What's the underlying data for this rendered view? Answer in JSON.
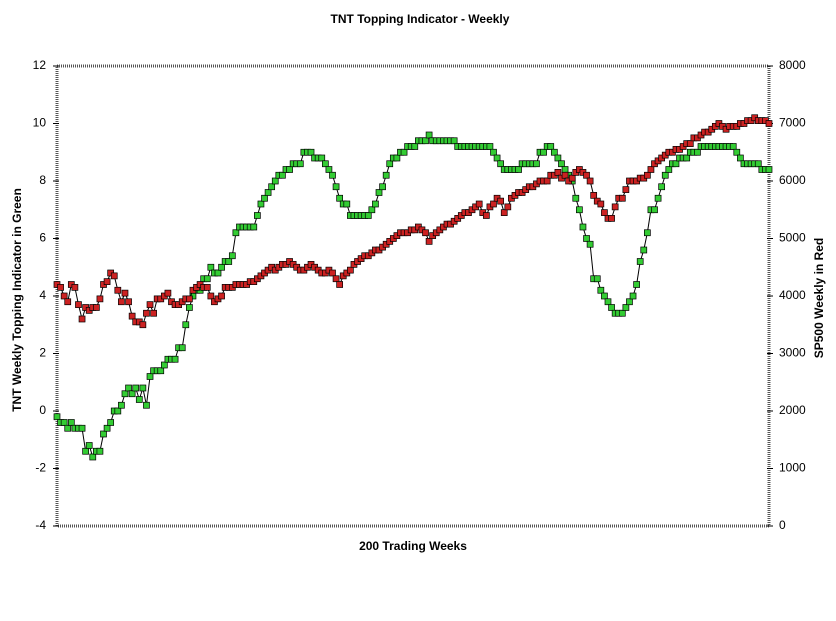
{
  "chart_data": {
    "type": "line",
    "title": "TNT Topping Indicator - Weekly",
    "xlabel": "200 Trading Weeks",
    "ylabel": "TNT Weekly Topping Indicator in Green",
    "y2label": "SP500 Weekly in Red",
    "ylim": [
      -4,
      12
    ],
    "yticks": [
      -4,
      -2,
      0,
      2,
      4,
      6,
      8,
      10,
      12
    ],
    "y2lim": [
      0,
      8000
    ],
    "y2ticks": [
      0,
      1000,
      2000,
      3000,
      4000,
      5000,
      6000,
      7000,
      8000
    ],
    "series": [
      {
        "color": "#33cc33",
        "values": [
          -0.2,
          -0.4,
          -0.4,
          -0.6,
          -0.4,
          -0.6,
          -0.6,
          -0.6,
          -1.4,
          -1.2,
          -1.6,
          -1.4,
          -1.4,
          -0.8,
          -0.6,
          -0.4,
          0,
          0,
          0.2,
          0.6,
          0.8,
          0.6,
          0.8,
          0.4,
          0.8,
          0.2,
          1.2,
          1.4,
          1.4,
          1.4,
          1.6,
          1.8,
          1.8,
          1.8,
          2.2,
          2.2,
          3,
          3.6,
          4,
          4.2,
          4.2,
          4.6,
          4.6,
          5,
          4.8,
          4.8,
          5,
          5.2,
          5.2,
          5.4,
          6.2,
          6.4,
          6.4,
          6.4,
          6.4,
          6.4,
          6.8,
          7.2,
          7.4,
          7.6,
          7.8,
          8,
          8.2,
          8.2,
          8.4,
          8.4,
          8.6,
          8.6,
          8.6,
          9,
          9,
          9,
          8.8,
          8.8,
          8.8,
          8.6,
          8.4,
          8.2,
          7.8,
          7.4,
          7.2,
          7.2,
          6.8,
          6.8,
          6.8,
          6.8,
          6.8,
          6.8,
          7,
          7.2,
          7.6,
          7.8,
          8.2,
          8.6,
          8.8,
          8.8,
          9,
          9,
          9.2,
          9.2,
          9.2,
          9.4,
          9.4,
          9.4,
          9.6,
          9.4,
          9.4,
          9.4,
          9.4,
          9.4,
          9.4,
          9.4,
          9.2,
          9.2,
          9.2,
          9.2,
          9.2,
          9.2,
          9.2,
          9.2,
          9.2,
          9.2,
          9.0,
          8.8,
          8.6,
          8.4,
          8.4,
          8.4,
          8.4,
          8.4,
          8.6,
          8.6,
          8.6,
          8.6,
          8.6,
          9.0,
          9.0,
          9.2,
          9.2,
          9.0,
          8.8,
          8.6,
          8.4,
          8.2,
          8.0,
          7.4,
          7.0,
          6.4,
          6.0,
          5.8,
          4.6,
          4.6,
          4.2,
          4.0,
          3.8,
          3.6,
          3.4,
          3.4,
          3.4,
          3.6,
          3.8,
          4.0,
          4.4,
          5.2,
          5.6,
          6.2,
          7.0,
          7.0,
          7.4,
          7.8,
          8.2,
          8.4,
          8.6,
          8.6,
          8.8,
          8.8,
          8.8,
          9.0,
          9.0,
          9.0,
          9.2,
          9.2,
          9.2,
          9.2,
          9.2,
          9.2,
          9.2,
          9.2,
          9.2,
          9.2,
          9.0,
          8.8,
          8.6,
          8.6,
          8.6,
          8.6,
          8.6,
          8.4,
          8.4,
          8.4
        ]
      },
      {
        "color": "#cc2222",
        "axis": "y2",
        "values": [
          4200,
          4150,
          4000,
          3900,
          4200,
          4150,
          3850,
          3600,
          3800,
          3750,
          3800,
          3800,
          3950,
          4200,
          4250,
          4400,
          4350,
          4100,
          3900,
          4050,
          3900,
          3650,
          3550,
          3550,
          3500,
          3700,
          3850,
          3700,
          3950,
          3950,
          4000,
          4050,
          3900,
          3850,
          3850,
          3900,
          3950,
          3950,
          4100,
          4150,
          4200,
          4150,
          4150,
          4000,
          3900,
          3950,
          4000,
          4150,
          4150,
          4150,
          4200,
          4200,
          4200,
          4200,
          4250,
          4250,
          4300,
          4350,
          4400,
          4450,
          4500,
          4450,
          4500,
          4550,
          4550,
          4600,
          4550,
          4500,
          4450,
          4450,
          4500,
          4550,
          4500,
          4450,
          4400,
          4400,
          4450,
          4400,
          4300,
          4200,
          4350,
          4400,
          4450,
          4550,
          4600,
          4650,
          4700,
          4700,
          4750,
          4800,
          4800,
          4850,
          4900,
          4950,
          5000,
          5050,
          5100,
          5100,
          5100,
          5150,
          5150,
          5200,
          5150,
          5100,
          4950,
          5050,
          5100,
          5150,
          5200,
          5250,
          5250,
          5300,
          5350,
          5400,
          5450,
          5450,
          5500,
          5550,
          5600,
          5450,
          5400,
          5550,
          5600,
          5700,
          5650,
          5450,
          5550,
          5700,
          5750,
          5800,
          5800,
          5850,
          5900,
          5900,
          5950,
          6000,
          6000,
          6000,
          6100,
          6100,
          6150,
          6050,
          6100,
          6000,
          6050,
          6150,
          6200,
          6150,
          6100,
          6000,
          5750,
          5650,
          5600,
          5450,
          5350,
          5350,
          5550,
          5700,
          5700,
          5850,
          6000,
          6000,
          6000,
          6050,
          6050,
          6100,
          6200,
          6300,
          6350,
          6400,
          6450,
          6500,
          6500,
          6550,
          6550,
          6600,
          6650,
          6650,
          6750,
          6750,
          6800,
          6850,
          6850,
          6900,
          6950,
          7000,
          6950,
          6900,
          6950,
          6950,
          6950,
          7000,
          7000,
          7050,
          7050,
          7100,
          7050,
          7050,
          7050,
          7000
        ]
      }
    ]
  }
}
